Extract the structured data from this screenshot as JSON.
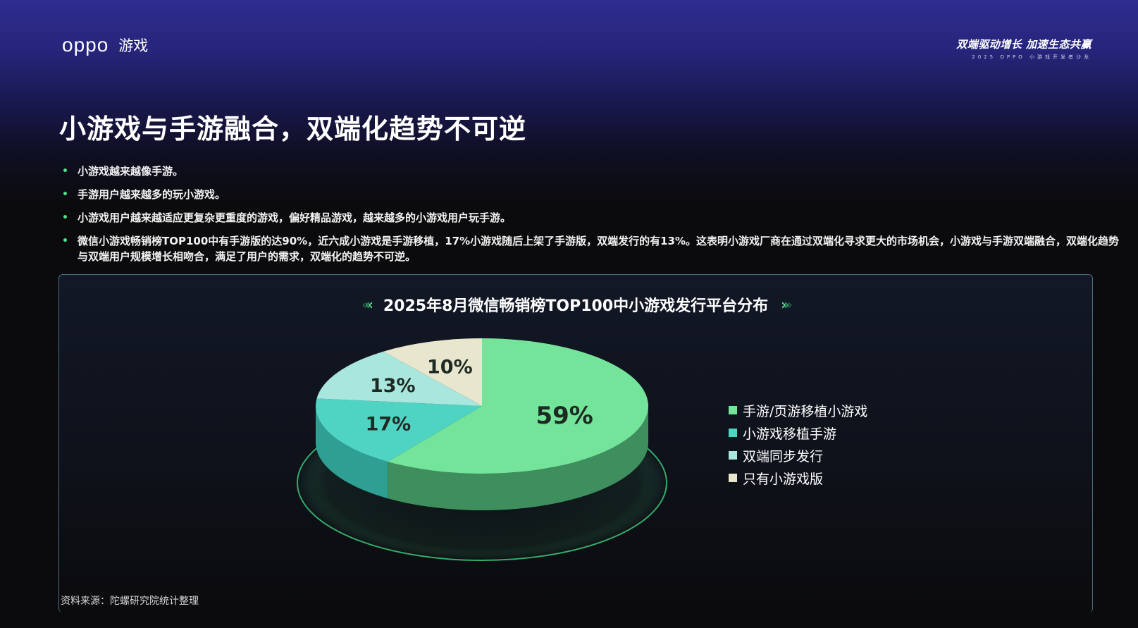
{
  "header": {
    "brand_logo": "oppo",
    "brand_sub": "游戏",
    "event_title": "双端驱动增长  加速生态共赢",
    "event_sub": "2025 OPPO 小游戏开发者沙龙"
  },
  "page_title": "小游戏与手游融合，双端化趋势不可逆",
  "bullets": [
    "小游戏越来越像手游。",
    "手游用户越来越多的玩小游戏。",
    "小游戏用户越来越适应更复杂更重度的游戏，偏好精品游戏，越来越多的小游戏用户玩手游。",
    "微信小游戏畅销榜TOP100中有手游版的达90%，近六成小游戏是手游移植，17%小游戏随后上架了手游版，双端发行的有13%。这表明小游戏厂商在通过双端化寻求更大的市场机会，小游戏与手游双端融合，双端化趋势与双端用户规模增长相吻合，满足了用户的需求，双端化的趋势不可逆。"
  ],
  "chart_data": {
    "type": "pie",
    "title": "2025年8月微信畅销榜TOP100中小游戏发行平台分布",
    "categories": [
      "手游/页游移植小游戏",
      "小游戏移植手游",
      "双端同步发行",
      "只有小游戏版"
    ],
    "values": [
      59,
      17,
      13,
      10
    ],
    "labels": [
      "59%",
      "17%",
      "13%",
      "10%"
    ],
    "colors": [
      "#73e499",
      "#4fd3c2",
      "#a9e6dd",
      "#e8e6cc"
    ],
    "side_colors": [
      "#3f8f5e",
      "#2f9e93",
      "#6fb2a8",
      "#b3b29b"
    ],
    "legend_position": "right"
  },
  "source": "资料来源：陀螺研究院统计整理"
}
